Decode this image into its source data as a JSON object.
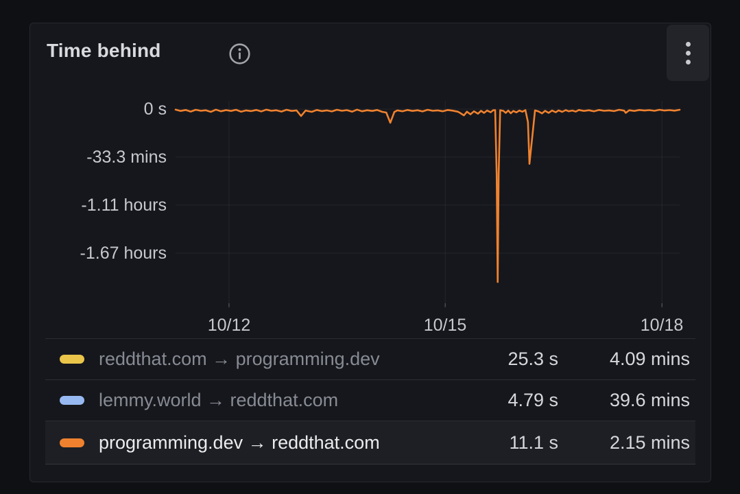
{
  "panel": {
    "title": "Time behind"
  },
  "icons": {
    "info": "info-icon",
    "menu": "kebab-menu-icon"
  },
  "colors": {
    "panel_bg": "#16171c",
    "page_bg": "#0f1014",
    "grid": "rgba(204,204,220,0.08)",
    "tick": "rgba(204,204,220,0.25)",
    "yellow": "#EAC54A",
    "blue": "#97B9F1",
    "orange": "#F0822F"
  },
  "chart_data": {
    "type": "line",
    "title": "Time behind",
    "xlabel": "",
    "ylabel": "",
    "grid": true,
    "legend_position": "bottom-table",
    "x_ticks": [
      "10/12",
      "10/15",
      "10/18"
    ],
    "y_ticks": [
      "0 s",
      "-33.3 mins",
      "-1.11 hours",
      "-1.67 hours"
    ],
    "y_tick_minutes": [
      0,
      -33.3,
      -66.6,
      -100
    ],
    "ylim_minutes": [
      -137,
      5
    ],
    "series": [
      {
        "name": "reddthat.com → programming.dev",
        "color": "#EAC54A",
        "stats": [
          "25.3 s",
          "4.09 mins"
        ],
        "plotted": false,
        "highlighted": false
      },
      {
        "name": "lemmy.world → reddthat.com",
        "color": "#97B9F1",
        "stats": [
          "4.79 s",
          "39.6 mins"
        ],
        "plotted": false,
        "highlighted": false
      },
      {
        "name": "programming.dev → reddthat.com",
        "color": "#F0822F",
        "stats": [
          "11.1 s",
          "2.15 mins"
        ],
        "plotted": true,
        "highlighted": true,
        "points_unit": "minutes_behind",
        "points": [
          [
            0.0,
            -0.4
          ],
          [
            0.01,
            -1.3
          ],
          [
            0.02,
            -0.6
          ],
          [
            0.03,
            -1.7
          ],
          [
            0.04,
            -0.5
          ],
          [
            0.05,
            -1.2
          ],
          [
            0.06,
            -0.8
          ],
          [
            0.07,
            -1.9
          ],
          [
            0.08,
            -0.4
          ],
          [
            0.09,
            -1.5
          ],
          [
            0.1,
            -0.7
          ],
          [
            0.11,
            -1.3
          ],
          [
            0.12,
            -0.5
          ],
          [
            0.13,
            -1.8
          ],
          [
            0.14,
            -0.9
          ],
          [
            0.15,
            -1.4
          ],
          [
            0.16,
            -0.6
          ],
          [
            0.17,
            -1.6
          ],
          [
            0.18,
            -0.4
          ],
          [
            0.19,
            -1.2
          ],
          [
            0.2,
            -0.8
          ],
          [
            0.21,
            -1.7
          ],
          [
            0.22,
            -0.5
          ],
          [
            0.23,
            -1.3
          ],
          [
            0.24,
            -0.9
          ],
          [
            0.249,
            -4.8
          ],
          [
            0.258,
            -1.0
          ],
          [
            0.27,
            -1.9
          ],
          [
            0.28,
            -0.6
          ],
          [
            0.29,
            -1.4
          ],
          [
            0.3,
            -0.9
          ],
          [
            0.31,
            -1.6
          ],
          [
            0.32,
            -0.5
          ],
          [
            0.33,
            -1.2
          ],
          [
            0.34,
            -0.7
          ],
          [
            0.35,
            -1.8
          ],
          [
            0.36,
            -0.4
          ],
          [
            0.37,
            -1.5
          ],
          [
            0.38,
            -0.8
          ],
          [
            0.39,
            -1.3
          ],
          [
            0.4,
            -0.6
          ],
          [
            0.41,
            -1.9
          ],
          [
            0.418,
            -2.4
          ],
          [
            0.426,
            -9.5
          ],
          [
            0.434,
            -2.0
          ],
          [
            0.44,
            -0.9
          ],
          [
            0.45,
            -1.5
          ],
          [
            0.46,
            -0.6
          ],
          [
            0.47,
            -1.3
          ],
          [
            0.48,
            -0.8
          ],
          [
            0.49,
            -1.6
          ],
          [
            0.5,
            -0.5
          ],
          [
            0.51,
            -1.2
          ],
          [
            0.52,
            -0.9
          ],
          [
            0.53,
            -1.5
          ],
          [
            0.54,
            -0.6
          ],
          [
            0.55,
            -1.1
          ],
          [
            0.56,
            -1.8
          ],
          [
            0.565,
            -2.8
          ],
          [
            0.572,
            -4.4
          ],
          [
            0.578,
            -1.8
          ],
          [
            0.585,
            -3.6
          ],
          [
            0.592,
            -1.5
          ],
          [
            0.6,
            -3.2
          ],
          [
            0.606,
            -1.2
          ],
          [
            0.612,
            -2.6
          ],
          [
            0.618,
            -1.0
          ],
          [
            0.625,
            -2.2
          ],
          [
            0.63,
            -0.8
          ],
          [
            0.634,
            -0.7
          ],
          [
            0.637,
            -45.0
          ],
          [
            0.639,
            -120.0
          ],
          [
            0.641,
            -45.0
          ],
          [
            0.644,
            -0.8
          ],
          [
            0.65,
            -1.2
          ],
          [
            0.655,
            -2.6
          ],
          [
            0.66,
            -1.0
          ],
          [
            0.665,
            -2.9
          ],
          [
            0.67,
            -1.3
          ],
          [
            0.676,
            -2.3
          ],
          [
            0.682,
            -1.0
          ],
          [
            0.688,
            -1.8
          ],
          [
            0.694,
            -0.7
          ],
          [
            0.699,
            -9.0
          ],
          [
            0.702,
            -38.0
          ],
          [
            0.708,
            -18.0
          ],
          [
            0.713,
            -0.9
          ],
          [
            0.72,
            -1.6
          ],
          [
            0.727,
            -3.0
          ],
          [
            0.733,
            -1.2
          ],
          [
            0.74,
            -2.6
          ],
          [
            0.747,
            -1.0
          ],
          [
            0.754,
            -2.2
          ],
          [
            0.76,
            -0.9
          ],
          [
            0.767,
            -1.9
          ],
          [
            0.774,
            -0.7
          ],
          [
            0.78,
            -1.5
          ],
          [
            0.787,
            -1.0
          ],
          [
            0.794,
            -1.7
          ],
          [
            0.8,
            -0.6
          ],
          [
            0.81,
            -1.3
          ],
          [
            0.82,
            -0.8
          ],
          [
            0.83,
            -1.5
          ],
          [
            0.84,
            -0.6
          ],
          [
            0.85,
            -1.2
          ],
          [
            0.86,
            -0.9
          ],
          [
            0.87,
            -1.4
          ],
          [
            0.88,
            -0.5
          ],
          [
            0.89,
            -1.1
          ],
          [
            0.893,
            -2.6
          ],
          [
            0.9,
            -0.8
          ],
          [
            0.91,
            -1.3
          ],
          [
            0.92,
            -0.6
          ],
          [
            0.93,
            -1.0
          ],
          [
            0.94,
            -0.7
          ],
          [
            0.95,
            -1.2
          ],
          [
            0.96,
            -0.5
          ],
          [
            0.97,
            -1.0
          ],
          [
            0.98,
            -0.7
          ],
          [
            0.99,
            -1.1
          ],
          [
            1.0,
            -0.5
          ]
        ]
      }
    ]
  }
}
